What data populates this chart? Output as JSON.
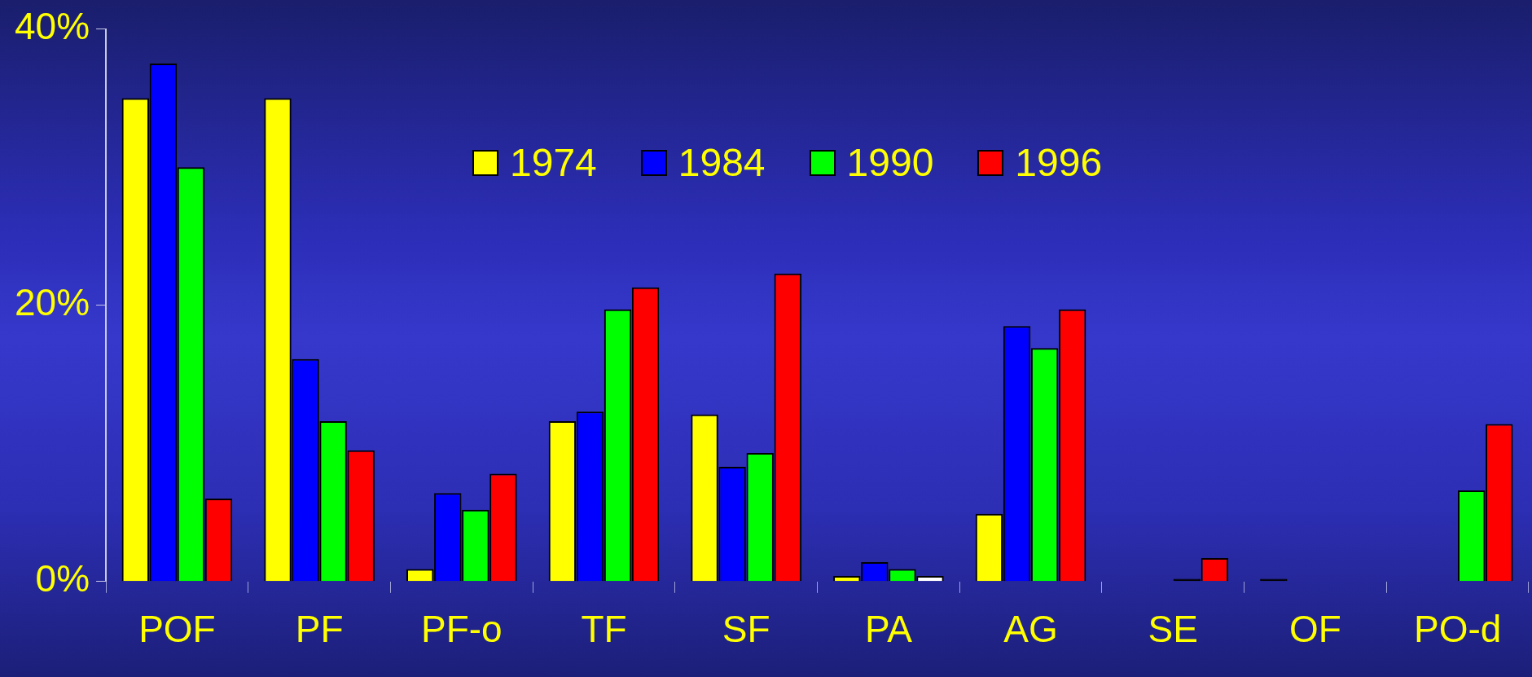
{
  "chart_data": {
    "type": "bar",
    "categories": [
      "POF",
      "PF",
      "PF-o",
      "TF",
      "SF",
      "PA",
      "AG",
      "SE",
      "OF",
      "PO-d"
    ],
    "series": [
      {
        "name": "1974",
        "color": "#ffff00",
        "colors": [
          "#ffff00",
          "#ffff00",
          "#ffff00",
          "#ffff00",
          "#ffff00",
          "#ffff00",
          "#ffff00",
          "#ffff00",
          "#000000",
          "#ffff00"
        ],
        "values": [
          35,
          35,
          0.9,
          11.6,
          12.1,
          0.4,
          4.9,
          null,
          0.2,
          null
        ]
      },
      {
        "name": "1984",
        "color": "#0000ff",
        "values": [
          37.5,
          16.1,
          6.4,
          12.3,
          8.3,
          1.4,
          18.5,
          null,
          null,
          null
        ]
      },
      {
        "name": "1990",
        "color": "#00ff00",
        "colors": [
          "#00ff00",
          "#00ff00",
          "#00ff00",
          "#00ff00",
          "#00ff00",
          "#00ff00",
          "#00ff00",
          "#000000",
          "#00ff00",
          "#00ff00"
        ],
        "values": [
          30,
          11.6,
          5.2,
          19.7,
          9.3,
          0.9,
          16.9,
          0.2,
          null,
          6.6
        ]
      },
      {
        "name": "1996",
        "color": "#ff0000",
        "colors": [
          "#ff0000",
          "#ff0000",
          "#ff0000",
          "#ff0000",
          "#ff0000",
          "#ffffff",
          "#ff0000",
          "#ff0000",
          "#ff0000",
          "#ff0000"
        ],
        "values": [
          6,
          9.5,
          7.8,
          21.3,
          22.3,
          0.4,
          19.7,
          1.7,
          null,
          11.4
        ]
      }
    ],
    "ylim": [
      0,
      40
    ],
    "yticks": [
      {
        "value": 0,
        "label": "0%"
      },
      {
        "value": 20,
        "label": "20%"
      },
      {
        "value": 40,
        "label": "40%"
      }
    ],
    "legend": "top",
    "grid": false
  }
}
